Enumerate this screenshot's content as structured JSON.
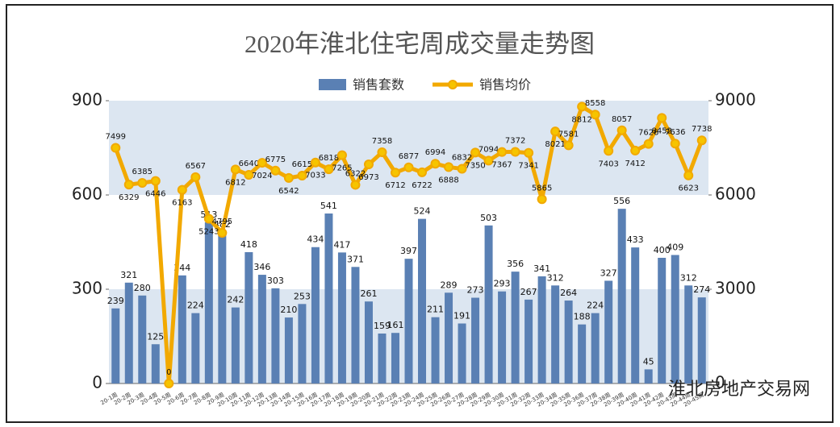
{
  "chart_data": {
    "type": "bar",
    "title": "2020年淮北住宅周成交量走势图",
    "categories": [
      "20-1周",
      "20-2周",
      "20-3周",
      "20-4周",
      "20-5周",
      "20-6周",
      "20-7周",
      "20-8周",
      "20-9周",
      "20-10周",
      "20-11周",
      "20-12周",
      "20-13周",
      "20-14周",
      "20-15周",
      "20-16周",
      "20-17周",
      "20-18周",
      "20-19周",
      "20-20周",
      "20-21周",
      "20-22周",
      "20-23周",
      "20-24周",
      "20-25周",
      "20-26周",
      "20-27周",
      "20-28周",
      "20-29周",
      "20-30周",
      "20-31周",
      "20-32周",
      "20-33周",
      "20-34周",
      "20-35周",
      "20-36周",
      "20-37周",
      "20-38周",
      "20-39周",
      "20-40周",
      "20-41周",
      "20-42周",
      "20-43周",
      "20-44周",
      "20-45周"
    ],
    "series": [
      {
        "name": "销售套数",
        "type": "bar",
        "color": "#5a80b4",
        "values": [
          239,
          321,
          280,
          125,
          0,
          344,
          224,
          513,
          482,
          242,
          418,
          346,
          303,
          210,
          253,
          434,
          541,
          417,
          371,
          261,
          159,
          161,
          397,
          524,
          211,
          289,
          191,
          273,
          503,
          293,
          356,
          267,
          341,
          312,
          264,
          188,
          224,
          327,
          556,
          433,
          45,
          400,
          409,
          312,
          274
        ]
      },
      {
        "name": "销售均价",
        "type": "line",
        "axis": "y2",
        "color": "#f2a900",
        "values": [
          7499,
          6329,
          6385,
          6446,
          0,
          6163,
          6567,
          5243,
          4795,
          6812,
          6640,
          7024,
          6775,
          6542,
          6615,
          7033,
          6818,
          7265,
          6322,
          6973,
          7358,
          6712,
          6877,
          6722,
          6994,
          6888,
          6832,
          7350,
          7094,
          7367,
          7372,
          7341,
          5865,
          8021,
          7581,
          8812,
          8558,
          7403,
          8057,
          7412,
          7626,
          8452,
          7636,
          6623,
          7738
        ]
      }
    ],
    "ylim": [
      0,
      900
    ],
    "yticks": [
      0,
      300,
      600,
      900
    ],
    "y2lim": [
      0,
      9000
    ],
    "y2ticks": [
      0,
      3000,
      6000,
      9000
    ],
    "legend": "top",
    "watermark": "淮北房地产交易网"
  }
}
